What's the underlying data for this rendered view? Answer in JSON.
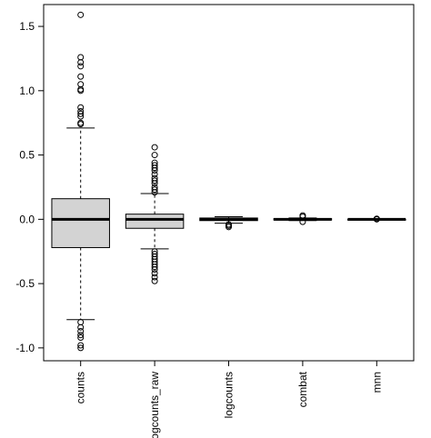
{
  "chart_data": {
    "type": "boxplot",
    "title": "",
    "xlabel": "",
    "ylabel": "",
    "ylim": [
      -1.1,
      1.67
    ],
    "yticks": [
      -1.0,
      -0.5,
      0.0,
      0.5,
      1.0,
      1.5
    ],
    "ytick_labels": [
      "-1.0",
      "-0.5",
      "0.0",
      "0.5",
      "1.0",
      "1.5"
    ],
    "categories": [
      "counts",
      "logcounts_raw",
      "logcounts",
      "combat",
      "mnn"
    ],
    "box_fill": "#d3d3d3",
    "box_stroke": "#000000",
    "grid": false,
    "boxes": [
      {
        "name": "counts",
        "whisker_low": -0.78,
        "q1": -0.22,
        "median": 0.0,
        "q3": 0.16,
        "whisker_high": 0.71,
        "outliers": [
          1.59,
          1.26,
          1.22,
          1.19,
          1.11,
          1.05,
          1.01,
          1.0,
          0.87,
          0.84,
          0.82,
          0.8,
          0.75,
          0.74,
          -0.8,
          -0.84,
          -0.87,
          -0.9,
          -0.92,
          -0.98,
          -1.0
        ]
      },
      {
        "name": "logcounts_raw",
        "whisker_low": -0.23,
        "q1": -0.07,
        "median": 0.0,
        "q3": 0.04,
        "whisker_high": 0.2,
        "outliers": [
          0.56,
          0.5,
          0.44,
          0.42,
          0.4,
          0.38,
          0.35,
          0.32,
          0.3,
          0.28,
          0.25,
          0.23,
          0.21,
          -0.25,
          -0.27,
          -0.29,
          -0.31,
          -0.33,
          -0.35,
          -0.37,
          -0.39,
          -0.42,
          -0.45,
          -0.48
        ]
      },
      {
        "name": "logcounts",
        "whisker_low": -0.03,
        "q1": -0.01,
        "median": 0.0,
        "q3": 0.01,
        "whisker_high": 0.02,
        "outliers": [
          -0.04,
          -0.05,
          -0.06
        ]
      },
      {
        "name": "combat",
        "whisker_low": -0.01,
        "q1": -0.005,
        "median": 0.0,
        "q3": 0.005,
        "whisker_high": 0.01,
        "outliers": [
          0.02,
          0.03,
          -0.02
        ]
      },
      {
        "name": "mnn",
        "whisker_low": -0.003,
        "q1": -0.001,
        "median": 0.0,
        "q3": 0.001,
        "whisker_high": 0.003,
        "outliers": [
          0.004,
          0.0
        ]
      }
    ]
  }
}
